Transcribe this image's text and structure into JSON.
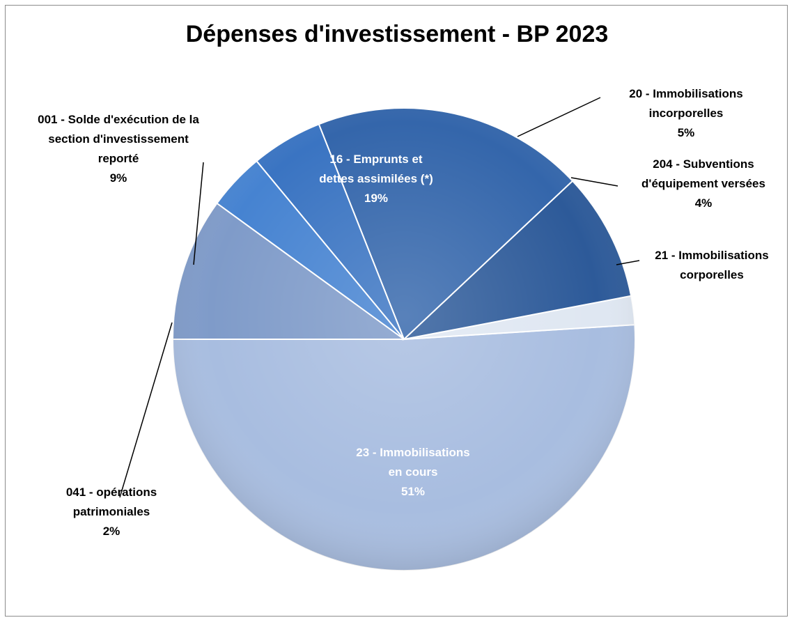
{
  "chart_data": {
    "type": "pie",
    "title": "Dépenses d'investissement - BP 2023",
    "slices": [
      {
        "lines": [
          "23 - Immobilisations",
          "en cours",
          "51%"
        ],
        "value": 51,
        "color": "#a8bde0"
      },
      {
        "lines": [
          "041 - opérations",
          "patrimoniales",
          "2%"
        ],
        "value": 2,
        "color": "#dfe7f2"
      },
      {
        "lines": [
          "001 - Solde d'exécution de la",
          "section d'investissement",
          "reporté",
          "9%"
        ],
        "value": 9,
        "color": "#2d5a99"
      },
      {
        "lines": [
          "16 - Emprunts et",
          "dettes assimilées (*)",
          "19%"
        ],
        "value": 19,
        "color": "#3466ab"
      },
      {
        "lines": [
          "20 - Immobilisations",
          "incorporelles",
          "5%"
        ],
        "value": 5,
        "color": "#3a74c2"
      },
      {
        "lines": [
          "204 - Subventions",
          "d'équipement versées",
          "4%"
        ],
        "value": 4,
        "color": "#4683d1"
      },
      {
        "lines": [
          "21 - Immobilisations",
          "corporelles"
        ],
        "value": 10,
        "color": "#7f9bc9"
      }
    ]
  }
}
